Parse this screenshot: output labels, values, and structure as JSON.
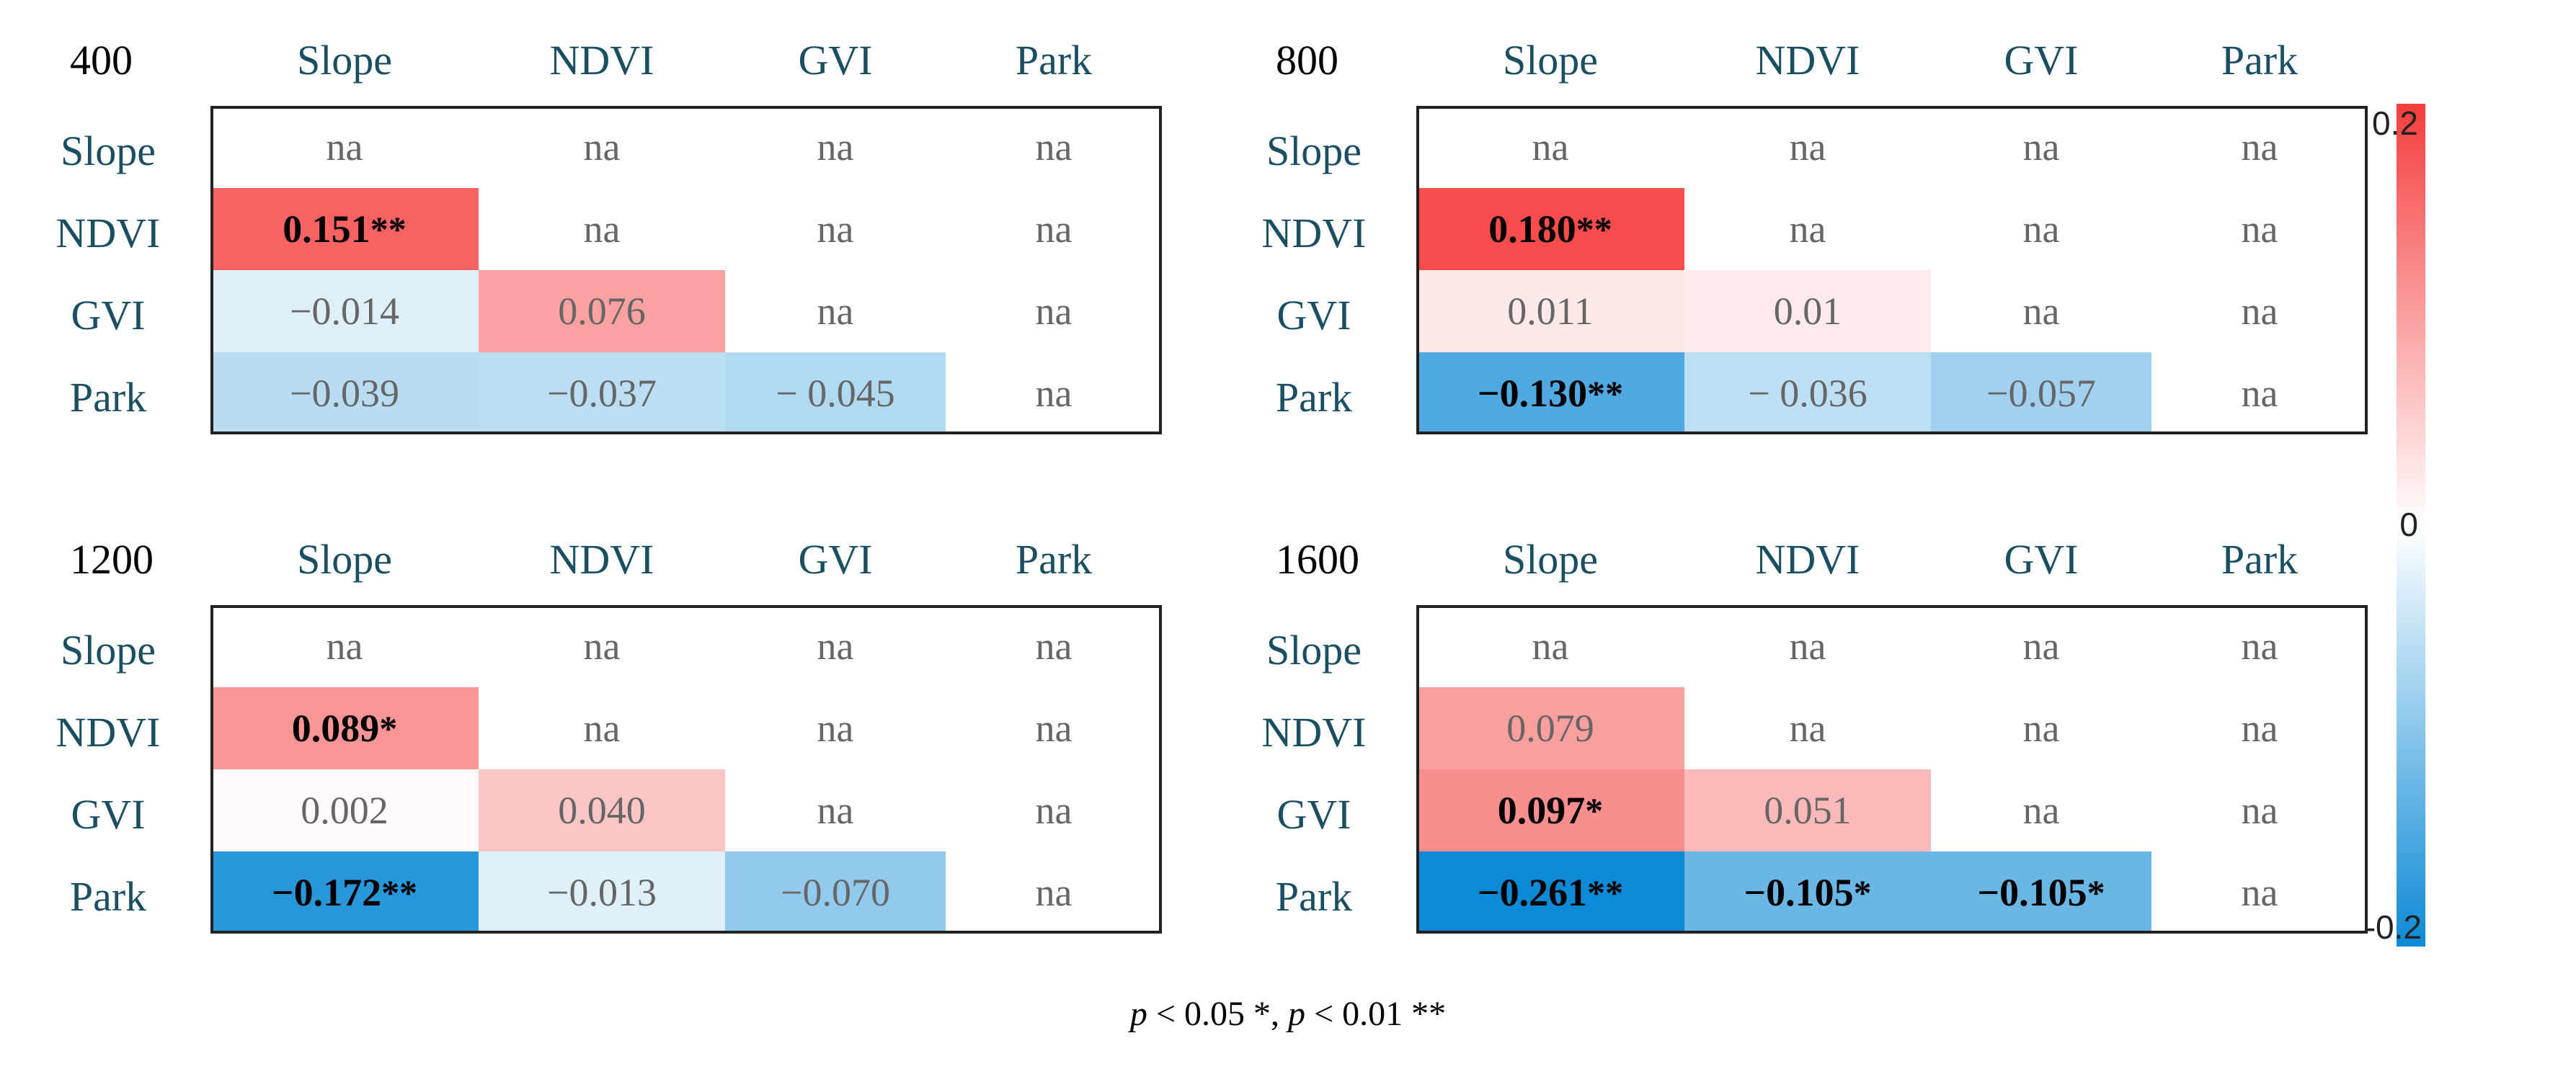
{
  "chart_data": {
    "type": "heatmap",
    "variables": [
      "Slope",
      "NDVI",
      "GVI",
      "Park"
    ],
    "color_scale": {
      "min": -0.2,
      "max": 0.2,
      "mid": 0,
      "min_color": "#0d8ad6",
      "mid_color": "#ffffff",
      "max_color": "#f53d3d"
    },
    "legend_ticks": [
      "0.2",
      "0",
      "-0.2"
    ],
    "footnote": {
      "p1": "p",
      "t1": " < 0.05 *, ",
      "p2": "p",
      "t2": " < 0.01 **"
    },
    "panels": [
      {
        "label": "400",
        "cells": [
          [
            {
              "text": "na"
            },
            {
              "text": "na"
            },
            {
              "text": "na"
            },
            {
              "text": "na"
            }
          ],
          [
            {
              "text": "0.151",
              "stars": "**",
              "value": 0.151
            },
            {
              "text": "na"
            },
            {
              "text": "na"
            },
            {
              "text": "na"
            }
          ],
          [
            {
              "text": "−0.014",
              "value": -0.014
            },
            {
              "text": "0.076",
              "value": 0.076
            },
            {
              "text": "na"
            },
            {
              "text": "na"
            }
          ],
          [
            {
              "text": "−0.039",
              "value": -0.039
            },
            {
              "text": "−0.037",
              "value": -0.037
            },
            {
              "text": "− 0.045",
              "value": -0.045
            },
            {
              "text": "na"
            }
          ]
        ]
      },
      {
        "label": "800",
        "cells": [
          [
            {
              "text": "na"
            },
            {
              "text": "na"
            },
            {
              "text": "na"
            },
            {
              "text": "na"
            }
          ],
          [
            {
              "text": "0.180",
              "stars": "**",
              "value": 0.18
            },
            {
              "text": "na"
            },
            {
              "text": "na"
            },
            {
              "text": "na"
            }
          ],
          [
            {
              "text": "0.011",
              "value": 0.011
            },
            {
              "text": "0.01",
              "value": 0.01
            },
            {
              "text": "na"
            },
            {
              "text": "na"
            }
          ],
          [
            {
              "text": "−0.130",
              "stars": "**",
              "value": -0.13
            },
            {
              "text": "− 0.036",
              "value": -0.036
            },
            {
              "text": "−0.057",
              "value": -0.057
            },
            {
              "text": "na"
            }
          ]
        ]
      },
      {
        "label": "1200",
        "cells": [
          [
            {
              "text": "na"
            },
            {
              "text": "na"
            },
            {
              "text": "na"
            },
            {
              "text": "na"
            }
          ],
          [
            {
              "text": "0.089",
              "stars": "*",
              "value": 0.089
            },
            {
              "text": "na"
            },
            {
              "text": "na"
            },
            {
              "text": "na"
            }
          ],
          [
            {
              "text": "0.002",
              "value": 0.002
            },
            {
              "text": "0.040",
              "value": 0.04
            },
            {
              "text": "na"
            },
            {
              "text": "na"
            }
          ],
          [
            {
              "text": "−0.172",
              "stars": "**",
              "value": -0.172
            },
            {
              "text": "−0.013",
              "value": -0.013
            },
            {
              "text": "−0.070",
              "value": -0.07
            },
            {
              "text": "na"
            }
          ]
        ]
      },
      {
        "label": "1600",
        "cells": [
          [
            {
              "text": "na"
            },
            {
              "text": "na"
            },
            {
              "text": "na"
            },
            {
              "text": "na"
            }
          ],
          [
            {
              "text": "0.079",
              "value": 0.079
            },
            {
              "text": "na"
            },
            {
              "text": "na"
            },
            {
              "text": "na"
            }
          ],
          [
            {
              "text": "0.097",
              "stars": "*",
              "value": 0.097
            },
            {
              "text": "0.051",
              "value": 0.051
            },
            {
              "text": "na"
            },
            {
              "text": "na"
            }
          ],
          [
            {
              "text": "−0.261",
              "stars": "**",
              "value": -0.261
            },
            {
              "text": "−0.105",
              "stars": "*",
              "value": -0.105
            },
            {
              "text": "−0.105",
              "stars": "*",
              "value": -0.105
            },
            {
              "text": "na"
            }
          ]
        ]
      }
    ]
  }
}
